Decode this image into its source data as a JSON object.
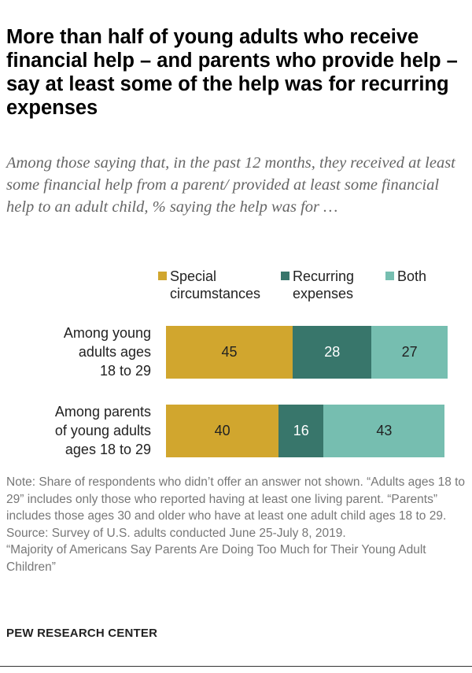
{
  "chart_data": {
    "type": "bar",
    "orientation": "horizontal",
    "stacked": true,
    "title": "More than half of young adults who receive financial help – and parents who provide help – say at least some of the help was for recurring expenses",
    "subtitle": "Among those saying that, in the past 12 months, they received at least some financial help from a parent/ provided at least some financial help to an adult child, % saying the help was for …",
    "categories": [
      "Among young adults ages 18 to 29",
      "Among parents of young adults ages 18 to 29"
    ],
    "series": [
      {
        "name": "Special circumstances",
        "color": "#D1A62E",
        "label_color": "#222222",
        "values": [
          45,
          40
        ]
      },
      {
        "name": "Recurring expenses",
        "color": "#38766B",
        "label_color": "#ffffff",
        "values": [
          28,
          16
        ]
      },
      {
        "name": "Both",
        "color": "#76BEB0",
        "label_color": "#222222",
        "values": [
          27,
          43
        ]
      }
    ],
    "xlim": [
      0,
      100
    ],
    "grid": false,
    "legend_placement": "top"
  },
  "category_label_lines": [
    [
      "Among young",
      "adults ages",
      "18 to 29"
    ],
    [
      "Among parents",
      "of young adults",
      "ages 18 to 29"
    ]
  ],
  "legend_lines": [
    [
      "Special",
      "circumstances"
    ],
    [
      "Recurring",
      "expenses"
    ],
    [
      "Both"
    ]
  ],
  "note": "Note: Share of respondents who didn’t offer an answer not shown. “Adults ages 18 to 29” includes only those who reported having at least one living parent. “Parents” includes those ages 30 and older who have at least one adult child ages 18 to 29.",
  "source": "Source: Survey of U.S. adults conducted June 25-July 8, 2019.",
  "report": "“Majority of Americans Say Parents Are Doing Too Much for Their Young Adult Children”",
  "footer": "PEW RESEARCH CENTER"
}
